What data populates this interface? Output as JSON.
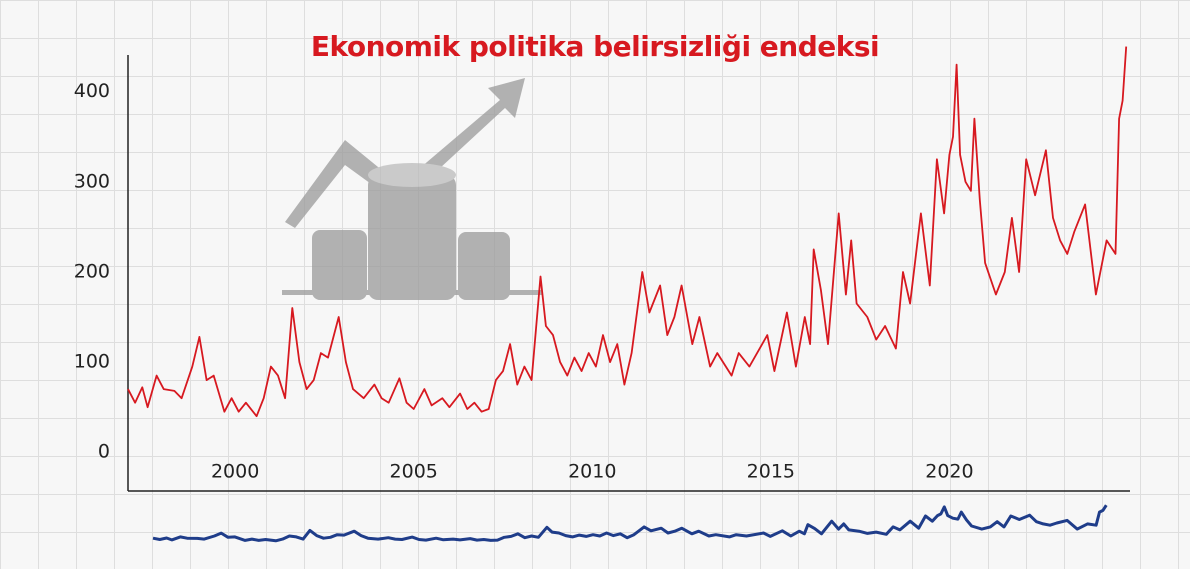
{
  "chart_data": {
    "type": "line",
    "title": "Ekonomik politika belirsizliği endeksi",
    "x": [
      1997.0,
      1997.2,
      1997.4,
      1997.55,
      1997.8,
      1998.0,
      1998.3,
      1998.5,
      1998.8,
      1999.0,
      1999.2,
      1999.4,
      1999.7,
      1999.9,
      2000.1,
      2000.3,
      2000.6,
      2000.8,
      2001.0,
      2001.2,
      2001.4,
      2001.6,
      2001.8,
      2002.0,
      2002.2,
      2002.4,
      2002.6,
      2002.9,
      2003.1,
      2003.3,
      2003.6,
      2003.9,
      2004.1,
      2004.3,
      2004.6,
      2004.8,
      2005.0,
      2005.3,
      2005.5,
      2005.8,
      2006.0,
      2006.3,
      2006.5,
      2006.7,
      2006.9,
      2007.1,
      2007.3,
      2007.5,
      2007.7,
      2007.9,
      2008.1,
      2008.3,
      2008.55,
      2008.7,
      2008.9,
      2009.1,
      2009.3,
      2009.5,
      2009.7,
      2009.9,
      2010.1,
      2010.3,
      2010.5,
      2010.7,
      2010.9,
      2011.1,
      2011.4,
      2011.6,
      2011.9,
      2012.1,
      2012.3,
      2012.5,
      2012.8,
      2013.0,
      2013.3,
      2013.5,
      2013.9,
      2014.1,
      2014.4,
      2014.9,
      2015.1,
      2015.45,
      2015.7,
      2015.95,
      2016.1,
      2016.2,
      2016.4,
      2016.6,
      2016.9,
      2017.1,
      2017.25,
      2017.4,
      2017.7,
      2017.95,
      2018.2,
      2018.5,
      2018.7,
      2018.9,
      2019.2,
      2019.45,
      2019.65,
      2019.85,
      2020.0,
      2020.1,
      2020.2,
      2020.3,
      2020.45,
      2020.6,
      2020.7,
      2020.85,
      2021.0,
      2021.3,
      2021.55,
      2021.75,
      2021.95,
      2022.15,
      2022.4,
      2022.7,
      2022.9,
      2023.1,
      2023.3,
      2023.5,
      2023.8,
      2024.1,
      2024.4,
      2024.65,
      2024.75,
      2024.85,
      2024.95
    ],
    "values": [
      70,
      55,
      72,
      50,
      85,
      70,
      68,
      60,
      95,
      128,
      80,
      85,
      45,
      60,
      45,
      55,
      40,
      60,
      95,
      85,
      60,
      160,
      100,
      70,
      80,
      110,
      105,
      150,
      100,
      70,
      60,
      75,
      60,
      55,
      82,
      55,
      48,
      70,
      52,
      60,
      50,
      65,
      48,
      55,
      45,
      48,
      80,
      90,
      120,
      75,
      95,
      80,
      195,
      140,
      130,
      100,
      85,
      105,
      90,
      110,
      95,
      130,
      100,
      120,
      75,
      110,
      200,
      155,
      185,
      130,
      150,
      185,
      120,
      150,
      95,
      110,
      85,
      110,
      95,
      130,
      90,
      155,
      95,
      150,
      120,
      225,
      180,
      120,
      265,
      175,
      235,
      165,
      150,
      125,
      140,
      115,
      200,
      165,
      265,
      185,
      325,
      265,
      330,
      350,
      430,
      330,
      300,
      290,
      370,
      280,
      210,
      175,
      200,
      260,
      200,
      325,
      285,
      335,
      260,
      235,
      220,
      245,
      275,
      175,
      235,
      220,
      370,
      390,
      450
    ],
    "color": "#d71920",
    "navigator_color": "#1f3d8a",
    "xlim": [
      1997,
      2025
    ],
    "ylim": [
      -43,
      452
    ],
    "xticks": [
      2000,
      2005,
      2010,
      2015,
      2020
    ],
    "yticks": [
      0,
      100,
      200,
      300,
      400
    ]
  }
}
